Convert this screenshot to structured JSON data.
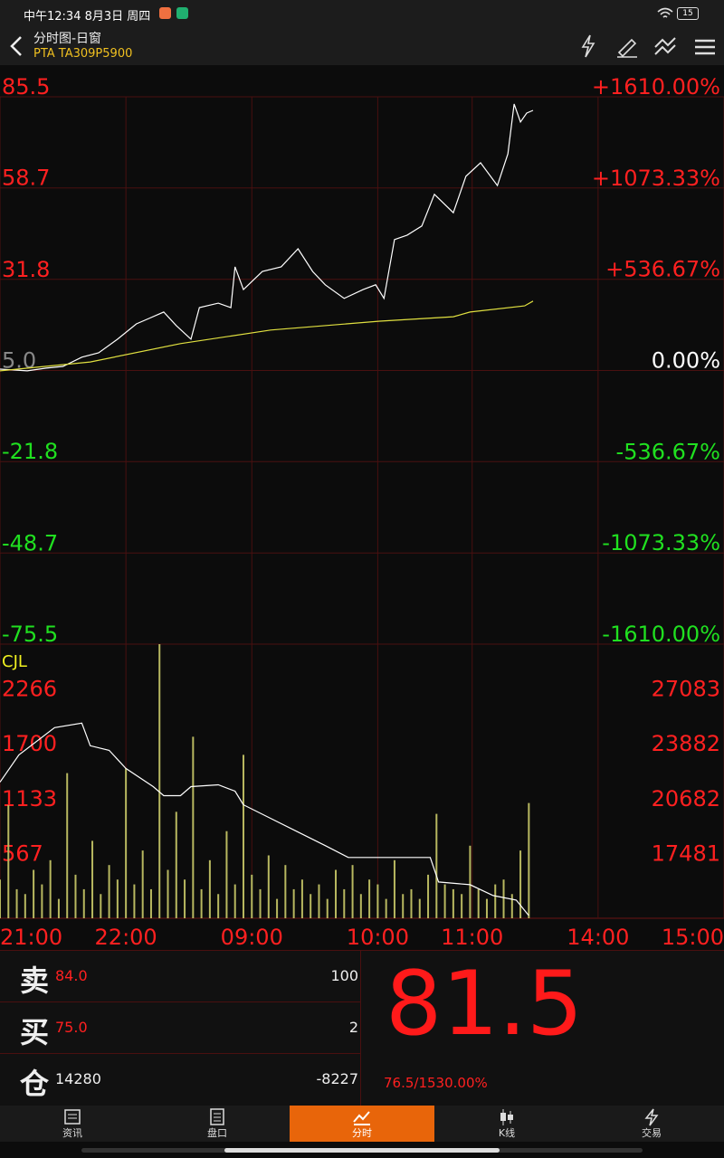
{
  "status_bar": {
    "time": "中午12:34 8月3日 周四",
    "battery": "15"
  },
  "header": {
    "title": "分时图-日窗",
    "subtitle": "PTA TA309P5900"
  },
  "chart_data": [
    {
      "type": "line",
      "xlim": [
        0,
        345
      ],
      "xticks": [
        0,
        60,
        120,
        180,
        225,
        285,
        345
      ],
      "ylim": [
        -75.5,
        85.5
      ],
      "yticks": [
        85.5,
        58.7,
        31.8,
        {
          "value": 5,
          "label": "5.0"
        },
        -21.8,
        -48.7,
        -75.5
      ],
      "y2lim": [
        -1610,
        1610
      ],
      "y2ticks": [
        {
          "value": 1610,
          "label": "+1610.00%"
        },
        {
          "value": 1073.33,
          "label": "+1073.33%"
        },
        {
          "value": 536.67,
          "label": "+536.67%"
        },
        {
          "value": 0,
          "label": "0.00%"
        },
        {
          "value": -536.67,
          "label": "-536.67%"
        },
        {
          "value": -1073.33,
          "label": "-1073.33%"
        },
        {
          "value": -1610,
          "label": "-1610.00%"
        }
      ],
      "grid": true,
      "series": [
        {
          "color": "#ffffff",
          "x": [
            0,
            13,
            22,
            30,
            39,
            47,
            56,
            65,
            71,
            78,
            84,
            91,
            95,
            104,
            110,
            112,
            116,
            125,
            134,
            142,
            149,
            155,
            164,
            173,
            179,
            183,
            188,
            194,
            201,
            207,
            216,
            222,
            229,
            237,
            242,
            245,
            248,
            251,
            254
          ],
          "values": [
            5.4,
            4.9,
            5.7,
            6.2,
            8.9,
            10.2,
            14.2,
            18.7,
            20.3,
            22.2,
            18.2,
            14.2,
            23.5,
            24.8,
            23.5,
            35.5,
            28.8,
            34.1,
            35.5,
            40.8,
            34.1,
            30.2,
            26.2,
            28.8,
            30.2,
            26.2,
            43.5,
            44.8,
            47.5,
            56.8,
            51.4,
            62.1,
            66.1,
            59.4,
            68.7,
            83.4,
            78.1,
            80.7,
            81.5
          ]
        },
        {
          "color": "#e0e040",
          "x": [
            0,
            43,
            86,
            129,
            181,
            216,
            224,
            250,
            254
          ],
          "values": [
            4.9,
            7.5,
            12.9,
            16.9,
            19.5,
            20.8,
            22.2,
            24.0,
            25.4
          ]
        }
      ]
    },
    {
      "type": "bar",
      "title": "CJL",
      "xlim": [
        0,
        345
      ],
      "xticks": [
        {
          "value": 0,
          "label": "21:00"
        },
        {
          "value": 60,
          "label": "22:00"
        },
        {
          "value": 120,
          "label": "09:00"
        },
        {
          "value": 180,
          "label": "10:00"
        },
        {
          "value": 225,
          "label": "11:00"
        },
        {
          "value": 285,
          "label": "14:00"
        },
        {
          "value": 345,
          "label": "15:00"
        }
      ],
      "ylim": [
        0,
        2833
      ],
      "yticks": [
        2266,
        1700,
        1133,
        567
      ],
      "y2lim": [
        14280,
        30284
      ],
      "y2ticks": [
        27083,
        23882,
        20682,
        17481
      ],
      "series": [
        {
          "type": "bar",
          "color": "#b8b860",
          "x": [
            0,
            4,
            8,
            12,
            16,
            20,
            24,
            28,
            32,
            36,
            40,
            44,
            48,
            52,
            56,
            60,
            64,
            68,
            72,
            76,
            80,
            84,
            88,
            92,
            96,
            100,
            104,
            108,
            112,
            116,
            120,
            124,
            128,
            132,
            136,
            140,
            144,
            148,
            152,
            156,
            160,
            164,
            168,
            172,
            176,
            180,
            184,
            188,
            192,
            196,
            200,
            204,
            208,
            212,
            216,
            220,
            224,
            228,
            232,
            236,
            240,
            244,
            248,
            252
          ],
          "values": [
            400,
            1170,
            300,
            250,
            500,
            350,
            600,
            200,
            1500,
            450,
            300,
            800,
            250,
            550,
            400,
            1548,
            350,
            700,
            300,
            2833,
            500,
            1100,
            400,
            1876,
            300,
            600,
            250,
            900,
            350,
            1689,
            450,
            300,
            650,
            200,
            550,
            300,
            400,
            250,
            350,
            200,
            500,
            300,
            550,
            250,
            400,
            350,
            200,
            600,
            250,
            300,
            200,
            450,
            1079,
            350,
            300,
            250,
            750,
            300,
            200,
            350,
            400,
            250,
            700,
            1191
          ]
        },
        {
          "type": "line",
          "axis": "y2",
          "color": "#ffffff",
          "x": [
            0,
            9,
            26,
            39,
            43,
            52,
            60,
            73,
            78,
            86,
            91,
            104,
            112,
            116,
            129,
            142,
            155,
            166,
            190,
            205,
            209,
            224,
            235,
            246,
            252
          ],
          "values": [
            22230,
            23820,
            25410,
            25675,
            24350,
            24085,
            23025,
            21965,
            21435,
            21435,
            21965,
            22071,
            21700,
            20905,
            20110,
            19315,
            18520,
            17831,
            17831,
            17831,
            16400,
            16241,
            15605,
            15340,
            14439
          ]
        }
      ]
    }
  ],
  "quote": {
    "rows": [
      {
        "label": "卖",
        "price": "84.0",
        "volume": "100"
      },
      {
        "label": "买",
        "price": "75.0",
        "volume": "2"
      },
      {
        "label": "仓",
        "price": "14280",
        "volume": "-8227"
      }
    ],
    "last": "81.5",
    "change": "76.5/1530.00%"
  },
  "tabs": [
    "资讯",
    "盘口",
    "分时",
    "K线",
    "交易"
  ]
}
